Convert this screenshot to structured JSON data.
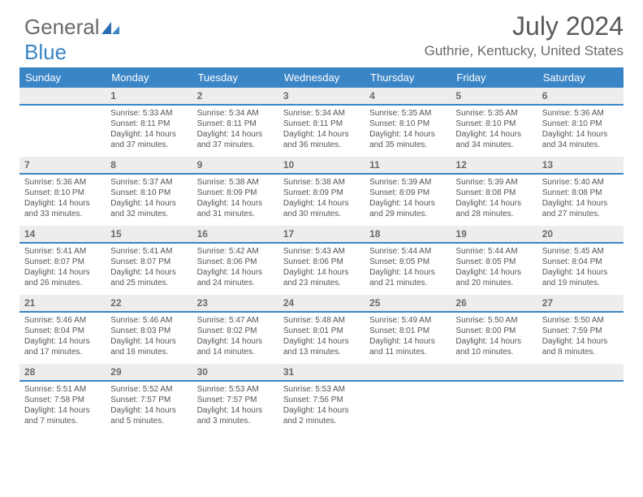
{
  "logo": {
    "word1": "General",
    "word2": "Blue"
  },
  "title": "July 2024",
  "location": "Guthrie, Kentucky, United States",
  "colors": {
    "accent": "#3a85c6",
    "header_text": "#ffffff",
    "daynum_bg": "#ededed",
    "body_text": "#555555",
    "title_text": "#5a5a5a"
  },
  "typography": {
    "title_pt": 32,
    "location_pt": 17,
    "dow_pt": 13,
    "daynum_pt": 12,
    "cell_pt": 10
  },
  "days_of_week": [
    "Sunday",
    "Monday",
    "Tuesday",
    "Wednesday",
    "Thursday",
    "Friday",
    "Saturday"
  ],
  "grid": {
    "cols": 7,
    "rows": 5
  },
  "start_offset": 1,
  "days": [
    {
      "n": 1,
      "sr": "5:33 AM",
      "ss": "8:11 PM",
      "dlh": 14,
      "dlm": 37
    },
    {
      "n": 2,
      "sr": "5:34 AM",
      "ss": "8:11 PM",
      "dlh": 14,
      "dlm": 37
    },
    {
      "n": 3,
      "sr": "5:34 AM",
      "ss": "8:11 PM",
      "dlh": 14,
      "dlm": 36
    },
    {
      "n": 4,
      "sr": "5:35 AM",
      "ss": "8:10 PM",
      "dlh": 14,
      "dlm": 35
    },
    {
      "n": 5,
      "sr": "5:35 AM",
      "ss": "8:10 PM",
      "dlh": 14,
      "dlm": 34
    },
    {
      "n": 6,
      "sr": "5:36 AM",
      "ss": "8:10 PM",
      "dlh": 14,
      "dlm": 34
    },
    {
      "n": 7,
      "sr": "5:36 AM",
      "ss": "8:10 PM",
      "dlh": 14,
      "dlm": 33
    },
    {
      "n": 8,
      "sr": "5:37 AM",
      "ss": "8:10 PM",
      "dlh": 14,
      "dlm": 32
    },
    {
      "n": 9,
      "sr": "5:38 AM",
      "ss": "8:09 PM",
      "dlh": 14,
      "dlm": 31
    },
    {
      "n": 10,
      "sr": "5:38 AM",
      "ss": "8:09 PM",
      "dlh": 14,
      "dlm": 30
    },
    {
      "n": 11,
      "sr": "5:39 AM",
      "ss": "8:09 PM",
      "dlh": 14,
      "dlm": 29
    },
    {
      "n": 12,
      "sr": "5:39 AM",
      "ss": "8:08 PM",
      "dlh": 14,
      "dlm": 28
    },
    {
      "n": 13,
      "sr": "5:40 AM",
      "ss": "8:08 PM",
      "dlh": 14,
      "dlm": 27
    },
    {
      "n": 14,
      "sr": "5:41 AM",
      "ss": "8:07 PM",
      "dlh": 14,
      "dlm": 26
    },
    {
      "n": 15,
      "sr": "5:41 AM",
      "ss": "8:07 PM",
      "dlh": 14,
      "dlm": 25
    },
    {
      "n": 16,
      "sr": "5:42 AM",
      "ss": "8:06 PM",
      "dlh": 14,
      "dlm": 24
    },
    {
      "n": 17,
      "sr": "5:43 AM",
      "ss": "8:06 PM",
      "dlh": 14,
      "dlm": 23
    },
    {
      "n": 18,
      "sr": "5:44 AM",
      "ss": "8:05 PM",
      "dlh": 14,
      "dlm": 21
    },
    {
      "n": 19,
      "sr": "5:44 AM",
      "ss": "8:05 PM",
      "dlh": 14,
      "dlm": 20
    },
    {
      "n": 20,
      "sr": "5:45 AM",
      "ss": "8:04 PM",
      "dlh": 14,
      "dlm": 19
    },
    {
      "n": 21,
      "sr": "5:46 AM",
      "ss": "8:04 PM",
      "dlh": 14,
      "dlm": 17
    },
    {
      "n": 22,
      "sr": "5:46 AM",
      "ss": "8:03 PM",
      "dlh": 14,
      "dlm": 16
    },
    {
      "n": 23,
      "sr": "5:47 AM",
      "ss": "8:02 PM",
      "dlh": 14,
      "dlm": 14
    },
    {
      "n": 24,
      "sr": "5:48 AM",
      "ss": "8:01 PM",
      "dlh": 14,
      "dlm": 13
    },
    {
      "n": 25,
      "sr": "5:49 AM",
      "ss": "8:01 PM",
      "dlh": 14,
      "dlm": 11
    },
    {
      "n": 26,
      "sr": "5:50 AM",
      "ss": "8:00 PM",
      "dlh": 14,
      "dlm": 10
    },
    {
      "n": 27,
      "sr": "5:50 AM",
      "ss": "7:59 PM",
      "dlh": 14,
      "dlm": 8
    },
    {
      "n": 28,
      "sr": "5:51 AM",
      "ss": "7:58 PM",
      "dlh": 14,
      "dlm": 7
    },
    {
      "n": 29,
      "sr": "5:52 AM",
      "ss": "7:57 PM",
      "dlh": 14,
      "dlm": 5
    },
    {
      "n": 30,
      "sr": "5:53 AM",
      "ss": "7:57 PM",
      "dlh": 14,
      "dlm": 3
    },
    {
      "n": 31,
      "sr": "5:53 AM",
      "ss": "7:56 PM",
      "dlh": 14,
      "dlm": 2
    }
  ],
  "labels": {
    "sunrise": "Sunrise:",
    "sunset": "Sunset:",
    "daylight": "Daylight:",
    "hours": "hours",
    "and": "and",
    "minutes": "minutes."
  }
}
